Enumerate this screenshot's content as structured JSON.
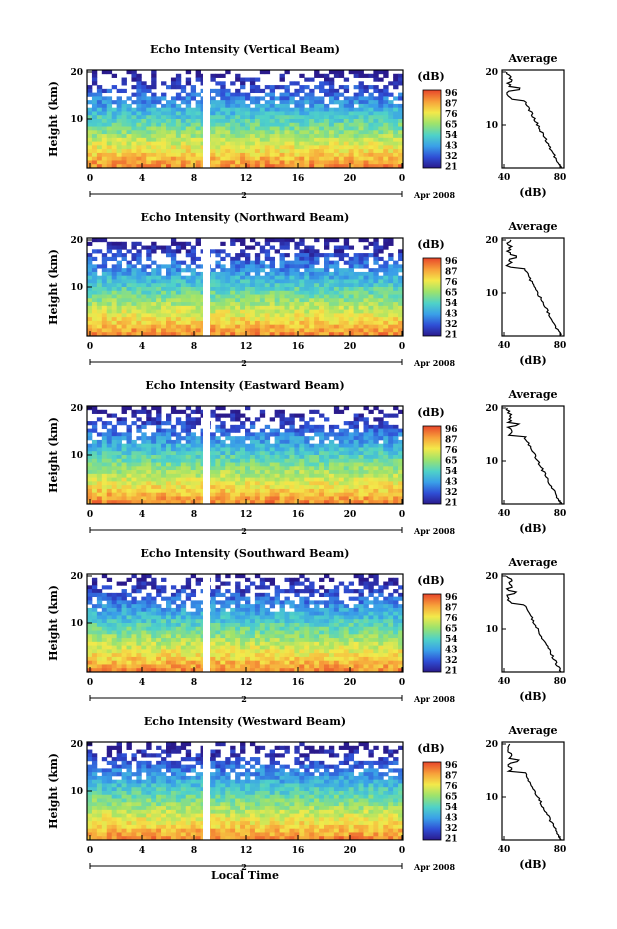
{
  "chart_data": [
    {
      "type": "heatmap",
      "title": "Echo Intensity (Vertical Beam)",
      "ylabel": "Height (km)",
      "y_ticks": [
        "20",
        "10"
      ],
      "x_ticks": [
        "0",
        "4",
        "8",
        "12",
        "16",
        "20",
        "0"
      ],
      "date_label": "2",
      "month_label": "Apr 2008",
      "colorbar": {
        "unit": "(dB)",
        "ticks": [
          "96",
          "87",
          "76",
          "65",
          "54",
          "43",
          "32",
          "21"
        ]
      },
      "profile": {
        "title": "Average",
        "xlabel": "(dB)",
        "x_ticks": [
          "40",
          "80"
        ],
        "y_ticks": [
          "20",
          "10"
        ]
      }
    },
    {
      "type": "heatmap",
      "title": "Echo Intensity (Northward Beam)",
      "ylabel": "Height (km)",
      "y_ticks": [
        "20",
        "10"
      ],
      "x_ticks": [
        "0",
        "4",
        "8",
        "12",
        "16",
        "20",
        "0"
      ],
      "date_label": "2",
      "month_label": "Apr 2008",
      "colorbar": {
        "unit": "(dB)",
        "ticks": [
          "96",
          "87",
          "76",
          "65",
          "54",
          "43",
          "32",
          "21"
        ]
      },
      "profile": {
        "title": "Average",
        "xlabel": "(dB)",
        "x_ticks": [
          "40",
          "80"
        ],
        "y_ticks": [
          "20",
          "10"
        ]
      }
    },
    {
      "type": "heatmap",
      "title": "Echo Intensity (Eastward Beam)",
      "ylabel": "Height (km)",
      "y_ticks": [
        "20",
        "10"
      ],
      "x_ticks": [
        "0",
        "4",
        "8",
        "12",
        "16",
        "20",
        "0"
      ],
      "date_label": "2",
      "month_label": "Apr 2008",
      "colorbar": {
        "unit": "(dB)",
        "ticks": [
          "96",
          "87",
          "76",
          "65",
          "54",
          "43",
          "32",
          "21"
        ]
      },
      "profile": {
        "title": "Average",
        "xlabel": "(dB)",
        "x_ticks": [
          "40",
          "80"
        ],
        "y_ticks": [
          "20",
          "10"
        ]
      }
    },
    {
      "type": "heatmap",
      "title": "Echo Intensity (Southward Beam)",
      "ylabel": "Height (km)",
      "y_ticks": [
        "20",
        "10"
      ],
      "x_ticks": [
        "0",
        "4",
        "8",
        "12",
        "16",
        "20",
        "0"
      ],
      "date_label": "2",
      "month_label": "Apr 2008",
      "colorbar": {
        "unit": "(dB)",
        "ticks": [
          "96",
          "87",
          "76",
          "65",
          "54",
          "43",
          "32",
          "21"
        ]
      },
      "profile": {
        "title": "Average",
        "xlabel": "(dB)",
        "x_ticks": [
          "40",
          "80"
        ],
        "y_ticks": [
          "20",
          "10"
        ]
      }
    },
    {
      "type": "heatmap",
      "title": "Echo Intensity (Westward Beam)",
      "ylabel": "Height (km)",
      "y_ticks": [
        "20",
        "10"
      ],
      "x_ticks": [
        "0",
        "4",
        "8",
        "12",
        "16",
        "20",
        "0"
      ],
      "date_label": "2",
      "month_label": "Apr 2008",
      "colorbar": {
        "unit": "(dB)",
        "ticks": [
          "96",
          "87",
          "76",
          "65",
          "54",
          "43",
          "32",
          "21"
        ]
      },
      "profile": {
        "title": "Average",
        "xlabel": "(dB)",
        "x_ticks": [
          "40",
          "80"
        ],
        "y_ticks": [
          "20",
          "10"
        ]
      }
    }
  ],
  "shared": {
    "xlabel": "Local Time",
    "colormap": [
      "#2a1a8c",
      "#2f4fd6",
      "#3aa0e8",
      "#4fd2c8",
      "#9ee36b",
      "#f3e94a",
      "#f7a23a",
      "#e8452a"
    ]
  }
}
